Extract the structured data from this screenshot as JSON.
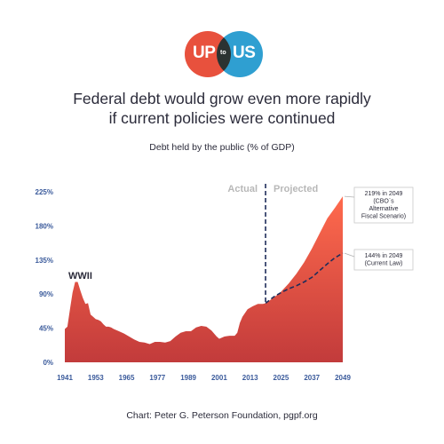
{
  "logo": {
    "left": "UP",
    "middle": "to",
    "right": "US"
  },
  "title_lines": [
    "Federal debt would grow even more rapidly",
    "if current policies were continued"
  ],
  "subtitle": "Debt held by the public (% of GDP)",
  "footer": "Chart: Peter G. Peterson Foundation, pgpf.org",
  "colors": {
    "area_top": "#ff6a4d",
    "area_bottom": "#c23b3b",
    "dashed": "#1f2d5a",
    "tick": "#3a5a9b",
    "phase": "#b8b8b8"
  },
  "chart_data": {
    "type": "area",
    "title": "Federal debt would grow even more rapidly if current policies were continued",
    "ylabel": "Debt held by the public (% of GDP)",
    "xlim": [
      1941,
      2049
    ],
    "ylim": [
      0,
      225
    ],
    "y_ticks": [
      0,
      45,
      90,
      135,
      180,
      225
    ],
    "y_tick_labels": [
      "0%",
      "45%",
      "90%",
      "135%",
      "180%",
      "225%"
    ],
    "x_ticks": [
      1941,
      1953,
      1965,
      1977,
      1989,
      2001,
      2013,
      2025,
      2037,
      2049
    ],
    "x_tick_labels": [
      "1941",
      "1953",
      "1965",
      "1977",
      "1989",
      "2001",
      "2013",
      "2025",
      "2037",
      "2049"
    ],
    "split_year": 2019,
    "phase_labels": {
      "actual": "Actual",
      "projected": "Projected"
    },
    "annotation_wwii": "WWII",
    "series": [
      {
        "name": "CBO's Alternative Fiscal Scenario",
        "x": [
          1941,
          1942,
          1943,
          1944,
          1945,
          1946,
          1947,
          1948,
          1949,
          1950,
          1951,
          1952,
          1953,
          1954,
          1955,
          1956,
          1957,
          1958,
          1959,
          1960,
          1962,
          1964,
          1966,
          1968,
          1970,
          1972,
          1974,
          1976,
          1978,
          1980,
          1982,
          1984,
          1986,
          1988,
          1990,
          1992,
          1994,
          1996,
          1998,
          2000,
          2001,
          2003,
          2005,
          2007,
          2008,
          2009,
          2010,
          2012,
          2014,
          2016,
          2018,
          2019,
          2022,
          2025,
          2028,
          2031,
          2034,
          2037,
          2040,
          2043,
          2046,
          2049
        ],
        "values": [
          44,
          47,
          70,
          92,
          106,
          106,
          95,
          85,
          77,
          78,
          63,
          60,
          57,
          56,
          54,
          50,
          47,
          47,
          46,
          44,
          41,
          38,
          34,
          30,
          27,
          26,
          24,
          27,
          27,
          26,
          28,
          34,
          39,
          41,
          41,
          46,
          48,
          47,
          42,
          34,
          31,
          34,
          35,
          35,
          39,
          52,
          60,
          70,
          74,
          77,
          77,
          78,
          85,
          93,
          104,
          117,
          132,
          150,
          170,
          190,
          204,
          219
        ],
        "end_label": "219% in 2049\n(CBO`s\nAlternative\nFiscal Scenario)"
      },
      {
        "name": "Current Law",
        "x": [
          2019,
          2022,
          2025,
          2028,
          2031,
          2034,
          2037,
          2040,
          2043,
          2046,
          2049
        ],
        "values": [
          78,
          86,
          92,
          97,
          101,
          106,
          112,
          121,
          130,
          138,
          144
        ],
        "end_label": "144% in 2049\n(Current Law)"
      }
    ],
    "legend": "none",
    "grid": false
  }
}
